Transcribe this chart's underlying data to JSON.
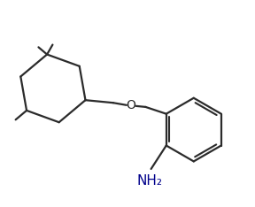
{
  "background_color": "#ffffff",
  "line_color": "#2b2b2b",
  "line_width": 1.6,
  "font_size_o": 10,
  "font_size_nh2": 10,
  "figure_width": 2.88,
  "figure_height": 2.34,
  "dpi": 100
}
